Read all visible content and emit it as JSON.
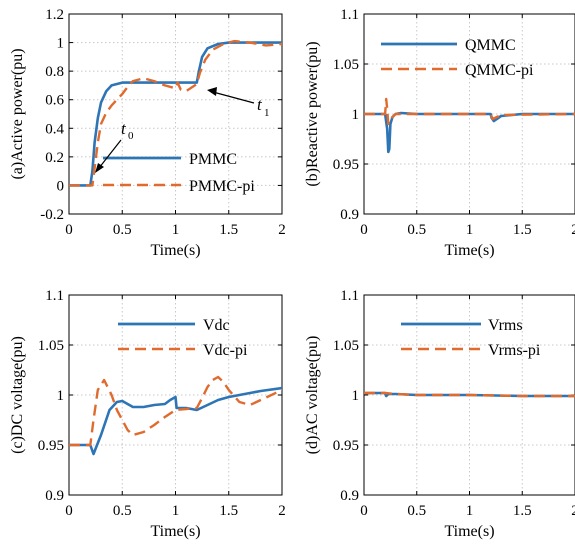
{
  "colors": {
    "blue": "#2e75b6",
    "orange": "#e06b2e"
  },
  "chart_data": [
    {
      "type": "line",
      "xlabel": "Time(s)",
      "ylabel": "(a)Active power(pu)",
      "xlim": [
        0,
        2
      ],
      "ylim": [
        -0.2,
        1.2
      ],
      "xticks": [
        "0",
        "0.5",
        "1",
        "1.5",
        "2"
      ],
      "yticks": [
        "-0.2",
        "0",
        "0.2",
        "0.4",
        "0.6",
        "0.8",
        "1",
        "1.2"
      ],
      "grid": true,
      "legend_position": "bottom-right",
      "series": [
        {
          "name": "PMMC",
          "color": "#2e75b6",
          "dashed": false,
          "x": [
            0,
            0.2,
            0.22,
            0.24,
            0.27,
            0.3,
            0.35,
            0.4,
            0.5,
            0.6,
            0.7,
            0.8,
            1.0,
            1.2,
            1.22,
            1.25,
            1.3,
            1.4,
            1.5,
            1.7,
            2.0
          ],
          "y": [
            0,
            0,
            0.1,
            0.3,
            0.47,
            0.58,
            0.66,
            0.7,
            0.72,
            0.72,
            0.72,
            0.72,
            0.72,
            0.72,
            0.8,
            0.9,
            0.96,
            0.99,
            1.0,
            1.0,
            1.0
          ]
        },
        {
          "name": "PMMC-pi",
          "color": "#e06b2e",
          "dashed": true,
          "x": [
            0,
            0.22,
            0.24,
            0.27,
            0.3,
            0.35,
            0.4,
            0.45,
            0.5,
            0.55,
            0.6,
            0.7,
            0.8,
            0.9,
            1.0,
            1.02,
            1.05,
            1.1,
            1.2,
            1.23,
            1.28,
            1.35,
            1.45,
            1.55,
            1.7,
            1.85,
            2.0
          ],
          "y": [
            0,
            0,
            0.12,
            0.3,
            0.43,
            0.51,
            0.56,
            0.6,
            0.64,
            0.69,
            0.73,
            0.75,
            0.73,
            0.7,
            0.68,
            0.72,
            0.67,
            0.66,
            0.71,
            0.79,
            0.88,
            0.95,
            0.99,
            1.01,
            1.0,
            0.98,
            0.99
          ]
        }
      ],
      "annotations": [
        {
          "label": "t",
          "subscript": "0",
          "x": 0.5,
          "y": 0.3
        },
        {
          "label": "t",
          "subscript": "1",
          "x": 1.88,
          "y": 0.85
        }
      ]
    },
    {
      "type": "line",
      "xlabel": "Time(s)",
      "ylabel": "(b)Reactive power(pu)",
      "xlim": [
        0,
        2
      ],
      "ylim": [
        0.9,
        1.1
      ],
      "xticks": [
        "0",
        "0.5",
        "1",
        "1.5",
        "2"
      ],
      "yticks": [
        "0.9",
        "0.95",
        "1",
        "1.05",
        "1.1"
      ],
      "grid": true,
      "legend_position": "top-right",
      "series": [
        {
          "name": "QMMC",
          "color": "#2e75b6",
          "dashed": false,
          "x": [
            0,
            0.2,
            0.22,
            0.23,
            0.24,
            0.25,
            0.27,
            0.3,
            0.35,
            0.5,
            1.0,
            1.2,
            1.21,
            1.23,
            1.3,
            1.5,
            2.0
          ],
          "y": [
            1.0,
            1.0,
            0.985,
            0.962,
            0.965,
            0.99,
            0.997,
            1.0,
            1.001,
            1.0,
            1.0,
            1.0,
            0.996,
            0.993,
            0.998,
            1.0,
            1.0
          ]
        },
        {
          "name": "QMMC-pi",
          "color": "#e06b2e",
          "dashed": true,
          "x": [
            0,
            0.2,
            0.21,
            0.22,
            0.23,
            0.25,
            0.3,
            0.5,
            1.0,
            1.2,
            1.22,
            1.3,
            2.0
          ],
          "y": [
            1.0,
            1.0,
            1.015,
            1.005,
            0.99,
            0.995,
            1.0,
            1.0,
            1.0,
            1.0,
            0.995,
            0.999,
            1.0
          ]
        }
      ]
    },
    {
      "type": "line",
      "xlabel": "Time(s)",
      "ylabel": "(c)DC voltage(pu)",
      "xlim": [
        0,
        2
      ],
      "ylim": [
        0.9,
        1.1
      ],
      "xticks": [
        "0",
        "0.5",
        "1",
        "1.5",
        "2"
      ],
      "yticks": [
        "0.9",
        "0.95",
        "1",
        "1.05",
        "1.1"
      ],
      "grid": true,
      "legend_position": "top-right",
      "series": [
        {
          "name": "Vdc",
          "color": "#2e75b6",
          "dashed": false,
          "x": [
            0,
            0.2,
            0.23,
            0.3,
            0.38,
            0.45,
            0.5,
            0.55,
            0.6,
            0.7,
            0.8,
            0.9,
            0.95,
            1.0,
            1.01,
            1.1,
            1.2,
            1.3,
            1.4,
            1.5,
            1.6,
            1.8,
            2.0
          ],
          "y": [
            0.95,
            0.95,
            0.941,
            0.96,
            0.985,
            0.993,
            0.994,
            0.991,
            0.988,
            0.988,
            0.99,
            0.991,
            0.995,
            0.998,
            0.987,
            0.987,
            0.985,
            0.99,
            0.995,
            0.998,
            1.0,
            1.004,
            1.007
          ]
        },
        {
          "name": "Vdc-pi",
          "color": "#e06b2e",
          "dashed": true,
          "x": [
            0,
            0.2,
            0.23,
            0.27,
            0.33,
            0.4,
            0.45,
            0.5,
            0.55,
            0.6,
            0.7,
            0.8,
            0.9,
            1.0,
            1.1,
            1.2,
            1.25,
            1.3,
            1.35,
            1.4,
            1.45,
            1.5,
            1.6,
            1.7,
            1.8,
            2.0
          ],
          "y": [
            0.95,
            0.95,
            0.975,
            1.005,
            1.015,
            1.0,
            0.985,
            0.975,
            0.965,
            0.96,
            0.963,
            0.97,
            0.978,
            0.985,
            0.986,
            0.987,
            0.997,
            1.008,
            1.015,
            1.018,
            1.013,
            1.005,
            0.993,
            0.99,
            0.995,
            1.005
          ]
        }
      ]
    },
    {
      "type": "line",
      "xlabel": "Time(s)",
      "ylabel": "(d)AC voltage(pu)",
      "xlim": [
        0,
        2
      ],
      "ylim": [
        0.9,
        1.1
      ],
      "xticks": [
        "0",
        "0.5",
        "1",
        "1.5",
        "2"
      ],
      "yticks": [
        "0.9",
        "0.95",
        "1",
        "1.05",
        "1.1"
      ],
      "grid": true,
      "legend_position": "top-right",
      "series": [
        {
          "name": "Vrms",
          "color": "#2e75b6",
          "dashed": false,
          "x": [
            0,
            0.2,
            0.21,
            0.23,
            0.3,
            0.5,
            1.0,
            1.5,
            2.0
          ],
          "y": [
            1.002,
            1.002,
            0.999,
            1.001,
            1.001,
            1.0,
            1.0,
            0.999,
            0.999
          ]
        },
        {
          "name": "Vrms-pi",
          "color": "#e06b2e",
          "dashed": true,
          "x": [
            0,
            0.2,
            0.3,
            0.5,
            1.0,
            1.5,
            2.0
          ],
          "y": [
            1.002,
            1.002,
            1.001,
            1.0,
            1.0,
            0.999,
            0.999
          ]
        }
      ]
    }
  ]
}
